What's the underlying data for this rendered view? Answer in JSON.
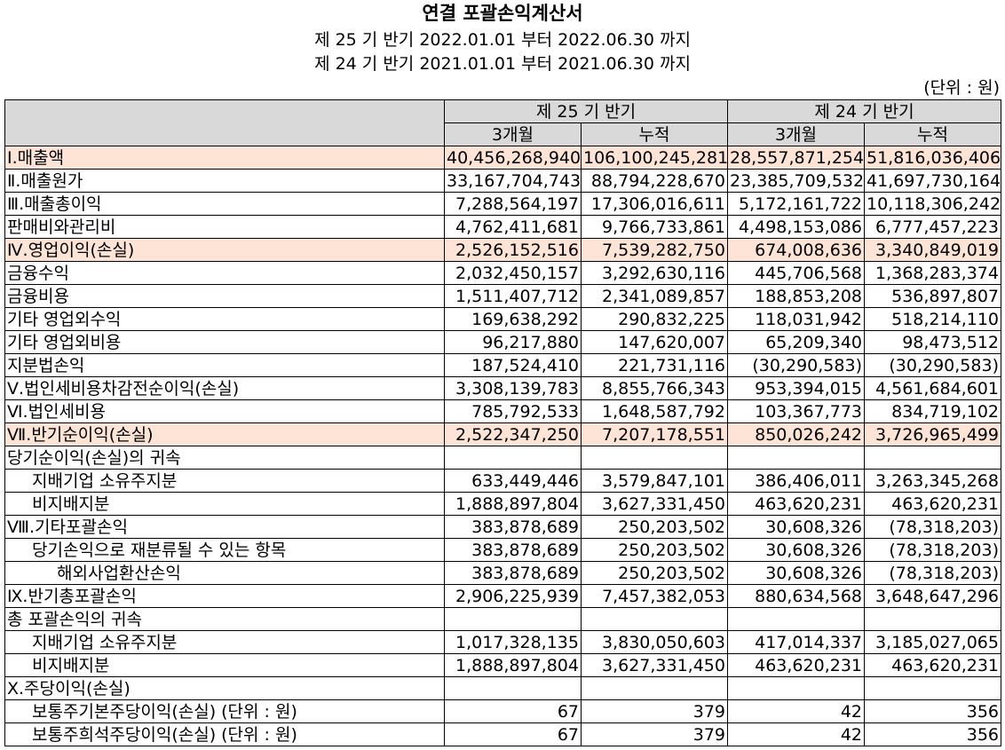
{
  "header": {
    "title": "연결 포괄손익계산서",
    "period1": "제 25 기 반기 2022.01.01 부터 2022.06.30 까지",
    "period2": "제 24 기 반기 2021.01.01 부터 2021.06.30 까지",
    "unit": "(단위 : 원)"
  },
  "columns": {
    "group1": "제 25 기 반기",
    "group2": "제 24 기 반기",
    "sub": [
      "3개월",
      "누적",
      "3개월",
      "누적"
    ]
  },
  "rows": [
    {
      "label": "Ⅰ.매출액",
      "indent": 0,
      "highlight": true,
      "values": [
        "40,456,268,940",
        "106,100,245,281",
        "28,557,871,254",
        "51,816,036,406"
      ]
    },
    {
      "label": "Ⅱ.매출원가",
      "indent": 0,
      "highlight": false,
      "values": [
        "33,167,704,743",
        "88,794,228,670",
        "23,385,709,532",
        "41,697,730,164"
      ]
    },
    {
      "label": "Ⅲ.매출총이익",
      "indent": 0,
      "highlight": false,
      "values": [
        "7,288,564,197",
        "17,306,016,611",
        "5,172,161,722",
        "10,118,306,242"
      ]
    },
    {
      "label": "판매비와관리비",
      "indent": 0,
      "highlight": false,
      "values": [
        "4,762,411,681",
        "9,766,733,861",
        "4,498,153,086",
        "6,777,457,223"
      ]
    },
    {
      "label": "Ⅳ.영업이익(손실)",
      "indent": 0,
      "highlight": true,
      "values": [
        "2,526,152,516",
        "7,539,282,750",
        "674,008,636",
        "3,340,849,019"
      ]
    },
    {
      "label": "금융수익",
      "indent": 0,
      "highlight": false,
      "values": [
        "2,032,450,157",
        "3,292,630,116",
        "445,706,568",
        "1,368,283,374"
      ]
    },
    {
      "label": "금융비용",
      "indent": 0,
      "highlight": false,
      "values": [
        "1,511,407,712",
        "2,341,089,857",
        "188,853,208",
        "536,897,807"
      ]
    },
    {
      "label": "기타 영업외수익",
      "indent": 0,
      "highlight": false,
      "values": [
        "169,638,292",
        "290,832,225",
        "118,031,942",
        "518,214,110"
      ]
    },
    {
      "label": "기타 영업외비용",
      "indent": 0,
      "highlight": false,
      "values": [
        "96,217,880",
        "147,620,007",
        "65,209,340",
        "98,473,512"
      ]
    },
    {
      "label": "지분법손익",
      "indent": 0,
      "highlight": false,
      "values": [
        "187,524,410",
        "221,731,116",
        "(30,290,583)",
        "(30,290,583)"
      ]
    },
    {
      "label": "Ⅴ.법인세비용차감전순이익(손실)",
      "indent": 0,
      "highlight": false,
      "values": [
        "3,308,139,783",
        "8,855,766,343",
        "953,394,015",
        "4,561,684,601"
      ]
    },
    {
      "label": "Ⅵ.법인세비용",
      "indent": 0,
      "highlight": false,
      "values": [
        "785,792,533",
        "1,648,587,792",
        "103,367,773",
        "834,719,102"
      ]
    },
    {
      "label": "Ⅶ.반기순이익(손실)",
      "indent": 0,
      "highlight": true,
      "values": [
        "2,522,347,250",
        "7,207,178,551",
        "850,026,242",
        "3,726,965,499"
      ]
    },
    {
      "label": "당기순이익(손실)의 귀속",
      "indent": 0,
      "highlight": false,
      "values": [
        "",
        "",
        "",
        ""
      ]
    },
    {
      "label": "지배기업 소유주지분",
      "indent": 1,
      "highlight": false,
      "values": [
        "633,449,446",
        "3,579,847,101",
        "386,406,011",
        "3,263,345,268"
      ]
    },
    {
      "label": "비지배지분",
      "indent": 1,
      "highlight": false,
      "values": [
        "1,888,897,804",
        "3,627,331,450",
        "463,620,231",
        "463,620,231"
      ]
    },
    {
      "label": "Ⅷ.기타포괄손익",
      "indent": 0,
      "highlight": false,
      "values": [
        "383,878,689",
        "250,203,502",
        "30,608,326",
        "(78,318,203)"
      ]
    },
    {
      "label": "당기손익으로 재분류될 수 있는 항목",
      "indent": 1,
      "highlight": false,
      "values": [
        "383,878,689",
        "250,203,502",
        "30,608,326",
        "(78,318,203)"
      ]
    },
    {
      "label": "해외사업환산손익",
      "indent": 2,
      "highlight": false,
      "values": [
        "383,878,689",
        "250,203,502",
        "30,608,326",
        "(78,318,203)"
      ]
    },
    {
      "label": "Ⅸ.반기총포괄손익",
      "indent": 0,
      "highlight": false,
      "values": [
        "2,906,225,939",
        "7,457,382,053",
        "880,634,568",
        "3,648,647,296"
      ]
    },
    {
      "label": "총 포괄손익의 귀속",
      "indent": 0,
      "highlight": false,
      "values": [
        "",
        "",
        "",
        ""
      ]
    },
    {
      "label": "지배기업 소유주지분",
      "indent": 1,
      "highlight": false,
      "values": [
        "1,017,328,135",
        "3,830,050,603",
        "417,014,337",
        "3,185,027,065"
      ]
    },
    {
      "label": "비지배지분",
      "indent": 1,
      "highlight": false,
      "values": [
        "1,888,897,804",
        "3,627,331,450",
        "463,620,231",
        "463,620,231"
      ]
    },
    {
      "label": "Ⅹ.주당이익(손실)",
      "indent": 0,
      "highlight": false,
      "values": [
        "",
        "",
        "",
        ""
      ]
    },
    {
      "label": "보통주기본주당이익(손실) (단위 : 원)",
      "indent": 1,
      "highlight": false,
      "values": [
        "67",
        "379",
        "42",
        "356"
      ]
    },
    {
      "label": "보통주희석주당이익(손실) (단위 : 원)",
      "indent": 1,
      "highlight": false,
      "values": [
        "67",
        "379",
        "42",
        "356"
      ]
    }
  ]
}
